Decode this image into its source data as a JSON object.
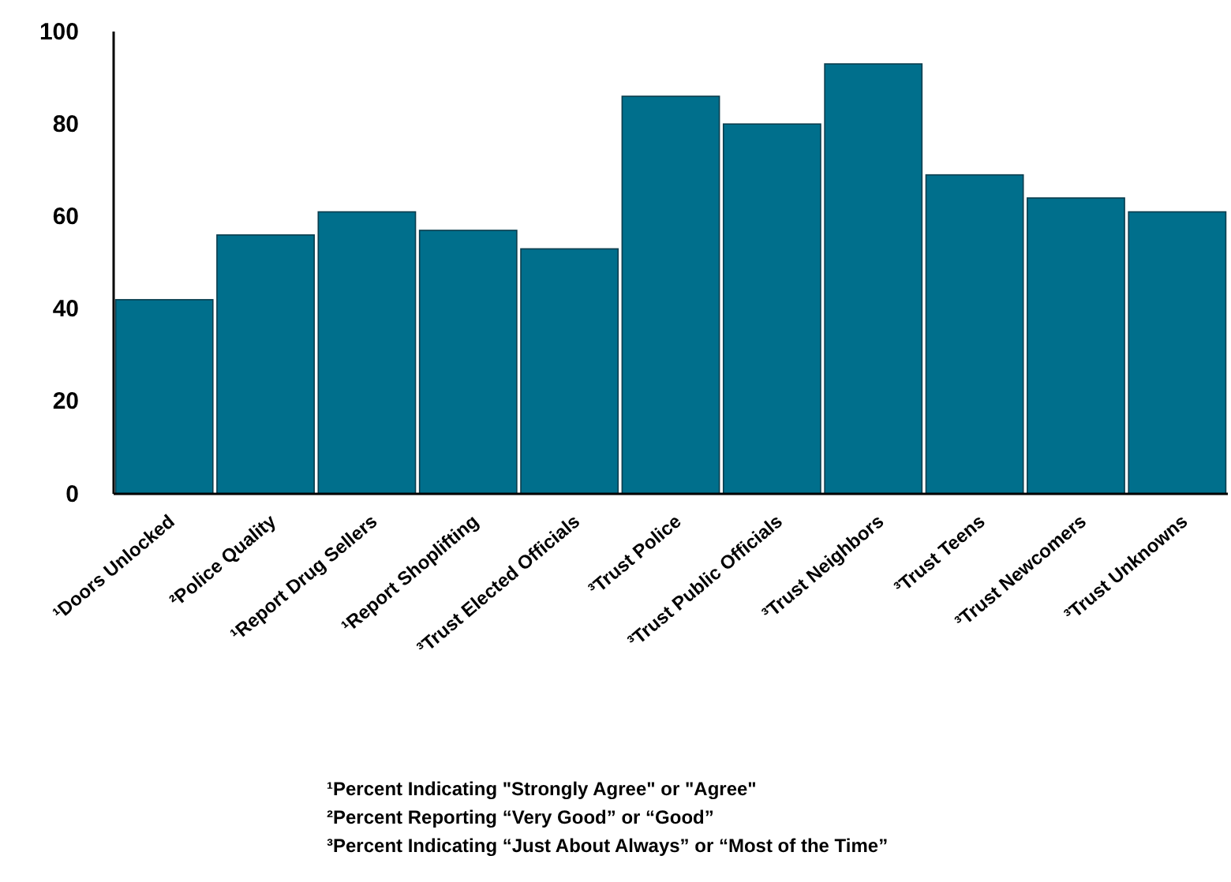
{
  "chart_data": {
    "type": "bar",
    "categories": [
      "¹Doors Unlocked",
      "²Police Quality",
      "¹Report Drug Sellers",
      "¹Report Shoplifting",
      "³Trust Elected Officials",
      "³Trust Police",
      "³Trust Public Officials",
      "³Trust Neighbors",
      "³Trust Teens",
      "³Trust Newcomers",
      "³Trust Unknowns"
    ],
    "values": [
      42,
      56,
      61,
      57,
      53,
      86,
      80,
      93,
      69,
      64,
      61
    ],
    "color": "#006f8c",
    "ylim": [
      0,
      100
    ],
    "yticks": [
      0,
      20,
      40,
      60,
      80,
      100
    ],
    "grid": false,
    "annotations": [
      "¹Percent Indicating \"Strongly Agree\" or \"Agree\"",
      "²Percent Reporting “Very Good” or “Good”",
      "³Percent Indicating “Just About Always” or “Most of the Time”"
    ]
  }
}
